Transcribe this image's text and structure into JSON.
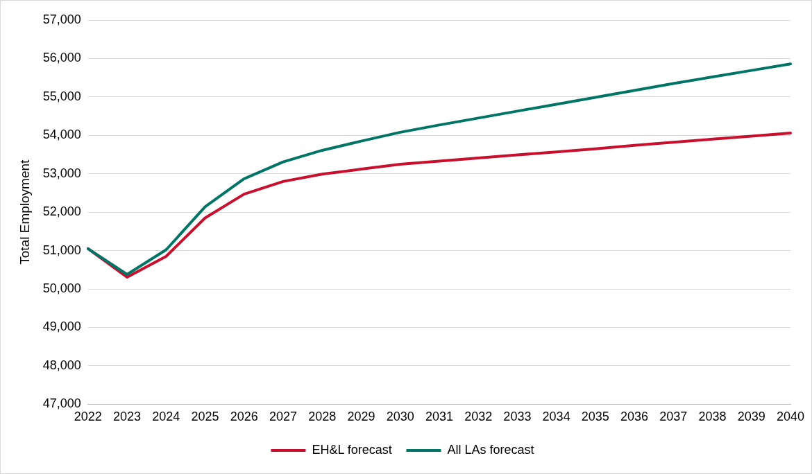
{
  "chart_data": {
    "type": "line",
    "ylabel": "Total Employment",
    "categories": [
      "2022",
      "2023",
      "2024",
      "2025",
      "2026",
      "2027",
      "2028",
      "2029",
      "2030",
      "2031",
      "2032",
      "2033",
      "2034",
      "2035",
      "2036",
      "2037",
      "2038",
      "2039",
      "2040"
    ],
    "series": [
      {
        "name": "EH&L forecast",
        "color": "#c8102e",
        "values": [
          51050,
          50310,
          50850,
          51850,
          52470,
          52800,
          52990,
          53120,
          53250,
          53330,
          53410,
          53490,
          53570,
          53650,
          53740,
          53820,
          53900,
          53980,
          54060
        ]
      },
      {
        "name": "All LAs forecast",
        "color": "#007565",
        "values": [
          51050,
          50380,
          51020,
          52140,
          52870,
          53310,
          53610,
          53850,
          54080,
          54270,
          54450,
          54630,
          54810,
          54990,
          55170,
          55350,
          55520,
          55690,
          55860
        ]
      }
    ],
    "ylim": [
      47000,
      57000
    ],
    "yticks": [
      {
        "value": 47000,
        "label": "47,000"
      },
      {
        "value": 48000,
        "label": "48,000"
      },
      {
        "value": 49000,
        "label": "49,000"
      },
      {
        "value": 50000,
        "label": "50,000"
      },
      {
        "value": 51000,
        "label": "51,000"
      },
      {
        "value": 52000,
        "label": "52,000"
      },
      {
        "value": 53000,
        "label": "53,000"
      },
      {
        "value": 54000,
        "label": "54,000"
      },
      {
        "value": 55000,
        "label": "55,000"
      },
      {
        "value": 56000,
        "label": "56,000"
      },
      {
        "value": 57000,
        "label": "57,000"
      }
    ],
    "grid": "y",
    "legend": "bottom",
    "marker": "none",
    "line_style": "solid"
  }
}
